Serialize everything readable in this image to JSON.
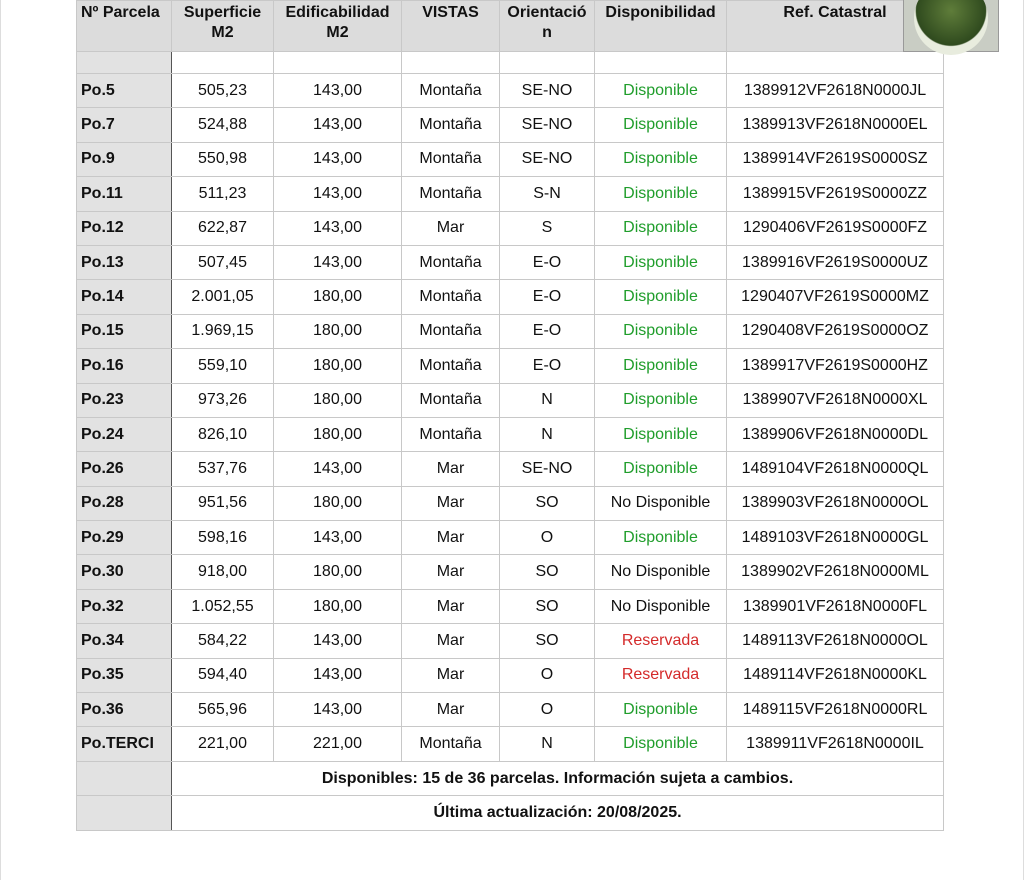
{
  "table": {
    "header": [
      "Nº Parcela",
      "Superficie M2",
      "Edificabilidad M2",
      "VISTAS",
      "Orientación",
      "Disponibilidad",
      "Ref. Catastral"
    ],
    "rows": [
      {
        "cells": [
          "Po.5",
          "505,23",
          "143,00",
          "Montaña",
          "SE-NO",
          "Disponible",
          "1389912VF2618N0000JL"
        ],
        "status_color": "#1f9d2b"
      },
      {
        "cells": [
          "Po.7",
          "524,88",
          "143,00",
          "Montaña",
          "SE-NO",
          "Disponible",
          "1389913VF2618N0000EL"
        ],
        "status_color": "#1f9d2b"
      },
      {
        "cells": [
          "Po.9",
          "550,98",
          "143,00",
          "Montaña",
          "SE-NO",
          "Disponible",
          "1389914VF2619S0000SZ"
        ],
        "status_color": "#1f9d2b"
      },
      {
        "cells": [
          "Po.11",
          "511,23",
          "143,00",
          "Montaña",
          "S-N",
          "Disponible",
          "1389915VF2619S0000ZZ"
        ],
        "status_color": "#1f9d2b"
      },
      {
        "cells": [
          "Po.12",
          "622,87",
          "143,00",
          "Mar",
          "S",
          "Disponible",
          "1290406VF2619S0000FZ"
        ],
        "status_color": "#1f9d2b"
      },
      {
        "cells": [
          "Po.13",
          "507,45",
          "143,00",
          "Montaña",
          "E-O",
          "Disponible",
          "1389916VF2619S0000UZ"
        ],
        "status_color": "#1f9d2b"
      },
      {
        "cells": [
          "Po.14",
          "2.001,05",
          "180,00",
          "Montaña",
          "E-O",
          "Disponible",
          "1290407VF2619S0000MZ"
        ],
        "status_color": "#1f9d2b"
      },
      {
        "cells": [
          "Po.15",
          "1.969,15",
          "180,00",
          "Montaña",
          "E-O",
          "Disponible",
          "1290408VF2619S0000OZ"
        ],
        "status_color": "#1f9d2b"
      },
      {
        "cells": [
          "Po.16",
          "559,10",
          "180,00",
          "Montaña",
          "E-O",
          "Disponible",
          "1389917VF2619S0000HZ"
        ],
        "status_color": "#1f9d2b"
      },
      {
        "cells": [
          "Po.23",
          "973,26",
          "180,00",
          "Montaña",
          "N",
          "Disponible",
          "1389907VF2618N0000XL"
        ],
        "status_color": "#1f9d2b"
      },
      {
        "cells": [
          "Po.24",
          "826,10",
          "180,00",
          "Montaña",
          "N",
          "Disponible",
          "1389906VF2618N0000DL"
        ],
        "status_color": "#1f9d2b"
      },
      {
        "cells": [
          "Po.26",
          "537,76",
          "143,00",
          "Mar",
          "SE-NO",
          "Disponible",
          "1489104VF2618N0000QL"
        ],
        "status_color": "#1f9d2b"
      },
      {
        "cells": [
          "Po.28",
          "951,56",
          "180,00",
          "Mar",
          "SO",
          "No Disponible",
          "1389903VF2618N0000OL"
        ],
        "status_color": "#111111"
      },
      {
        "cells": [
          "Po.29",
          "598,16",
          "143,00",
          "Mar",
          "O",
          "Disponible",
          "1489103VF2618N0000GL"
        ],
        "status_color": "#1f9d2b"
      },
      {
        "cells": [
          "Po.30",
          "918,00",
          "180,00",
          "Mar",
          "SO",
          "No Disponible",
          "1389902VF2618N0000ML"
        ],
        "status_color": "#111111"
      },
      {
        "cells": [
          "Po.32",
          "1.052,55",
          "180,00",
          "Mar",
          "SO",
          "No Disponible",
          "1389901VF2618N0000FL"
        ],
        "status_color": "#111111"
      },
      {
        "cells": [
          "Po.34",
          "584,22",
          "143,00",
          "Mar",
          "SO",
          "Reservada",
          "1489113VF2618N0000OL"
        ],
        "status_color": "#d42a2a"
      },
      {
        "cells": [
          "Po.35",
          "594,40",
          "143,00",
          "Mar",
          "O",
          "Reservada",
          "1489114VF2618N0000KL"
        ],
        "status_color": "#d42a2a"
      },
      {
        "cells": [
          "Po.36",
          "565,96",
          "143,00",
          "Mar",
          "O",
          "Disponible",
          "1489115VF2618N0000RL"
        ],
        "status_color": "#1f9d2b"
      },
      {
        "cells": [
          "Po.TERCI",
          "221,00",
          "221,00",
          "Montaña",
          "N",
          "Disponible",
          "1389911VF2618N0000IL"
        ],
        "status_color": "#1f9d2b"
      }
    ],
    "footer": [
      "Disponibles: 15 de 36 parcelas. Información sujeta a cambios.",
      "Última actualización: 20/08/2025."
    ]
  }
}
